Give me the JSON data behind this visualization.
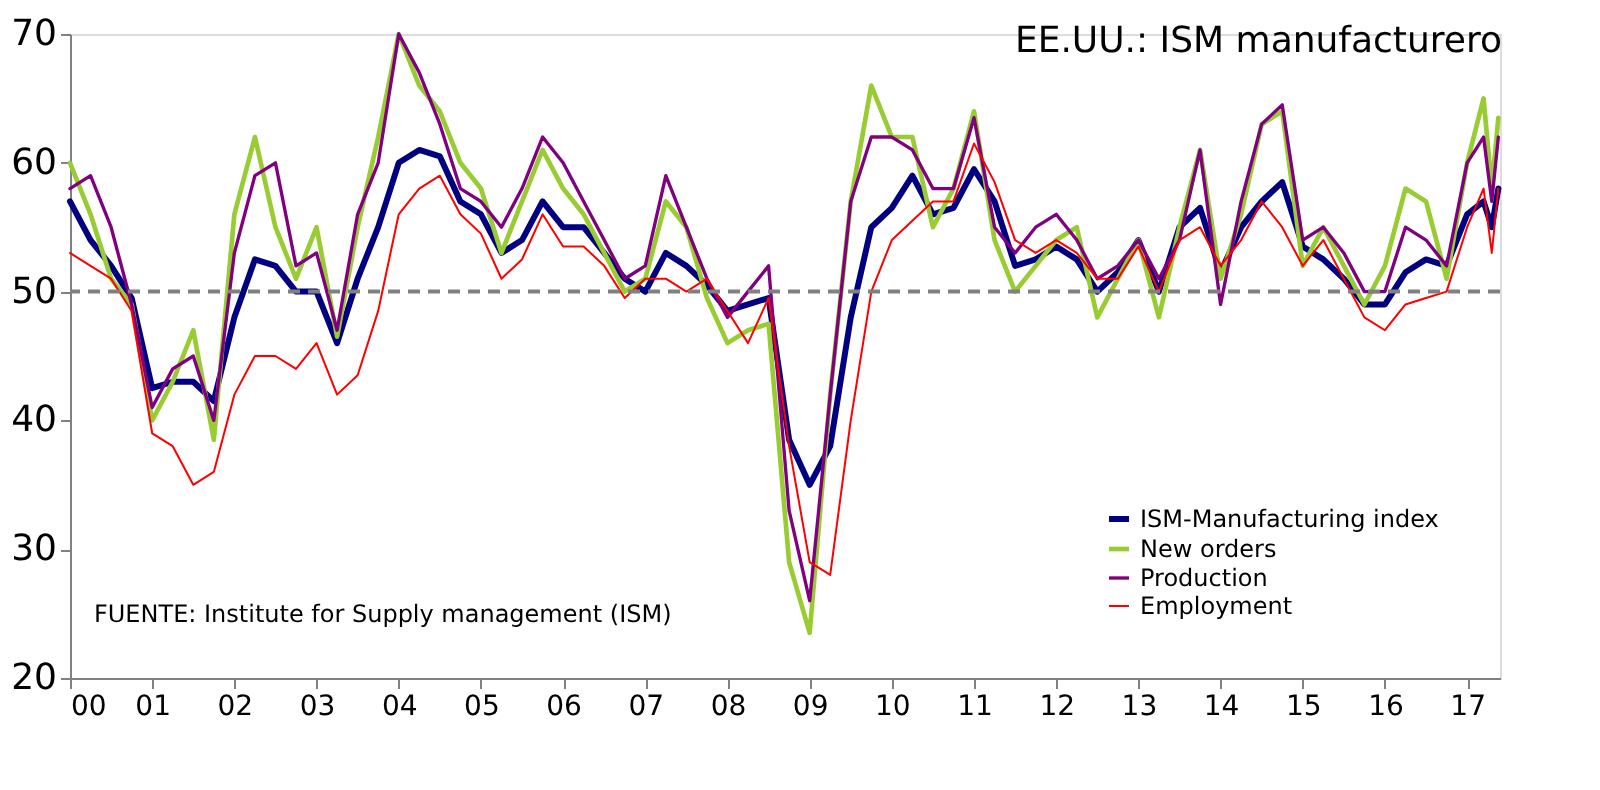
{
  "chart_data": {
    "type": "line",
    "title": "EE.UU.: ISM manufacturero",
    "x": [
      2000,
      2000.25,
      2000.5,
      2000.75,
      2001,
      2001.25,
      2001.5,
      2001.75,
      2002,
      2002.25,
      2002.5,
      2002.75,
      2003,
      2003.25,
      2003.5,
      2003.75,
      2004,
      2004.25,
      2004.5,
      2004.75,
      2005,
      2005.25,
      2005.5,
      2005.75,
      2006,
      2006.25,
      2006.5,
      2006.75,
      2007,
      2007.25,
      2007.5,
      2007.75,
      2008,
      2008.25,
      2008.5,
      2008.75,
      2009,
      2009.25,
      2009.5,
      2009.75,
      2010,
      2010.25,
      2010.5,
      2010.75,
      2011,
      2011.25,
      2011.5,
      2011.75,
      2012,
      2012.25,
      2012.5,
      2012.75,
      2013,
      2013.25,
      2013.5,
      2013.75,
      2014,
      2014.25,
      2014.5,
      2014.75,
      2015,
      2015.25,
      2015.5,
      2015.75,
      2016,
      2016.25,
      2016.5,
      2016.75,
      2017,
      2017.2,
      2017.3,
      2017.38
    ],
    "series": [
      {
        "name": "ISM-Manufacturing index",
        "color": "#000080",
        "values": [
          57,
          54,
          52,
          49.5,
          42.5,
          43,
          43,
          41.5,
          48,
          52.5,
          52,
          50,
          50,
          46,
          51,
          55,
          60,
          61,
          60.5,
          57,
          56,
          53,
          54,
          57,
          55,
          55,
          53,
          51,
          50,
          53,
          52,
          50.5,
          48.5,
          49,
          49.5,
          38.5,
          35,
          38,
          48,
          55,
          56.5,
          59,
          56,
          56.5,
          59.5,
          57,
          52,
          52.5,
          53.5,
          52.5,
          50,
          51.5,
          54,
          50,
          55,
          56.5,
          51.5,
          55,
          57,
          58.5,
          53.5,
          52.5,
          51,
          49,
          49,
          51.5,
          52.5,
          52,
          56,
          57,
          55,
          58
        ]
      },
      {
        "name": "New orders",
        "color": "#99cc33",
        "values": [
          60,
          56,
          51,
          49,
          40,
          43,
          47,
          38.5,
          56,
          62,
          55,
          51,
          55,
          46.5,
          55,
          62,
          70,
          66,
          64,
          60,
          58,
          53,
          57,
          61,
          58,
          56,
          53,
          50,
          51,
          57,
          55,
          49.5,
          46,
          47,
          47.5,
          29,
          23.5,
          42,
          57,
          66,
          62,
          62,
          55,
          58,
          64,
          54,
          50,
          52,
          54,
          55,
          48,
          51,
          54,
          48,
          55,
          61,
          51,
          56,
          63,
          64,
          52,
          55,
          52,
          49,
          52,
          58,
          57,
          51,
          60,
          65,
          58,
          63.5
        ]
      },
      {
        "name": "Production",
        "color": "#800080",
        "values": [
          58,
          59,
          55,
          49,
          41,
          44,
          45,
          40,
          53,
          59,
          60,
          52,
          53,
          47,
          56,
          60,
          70,
          67,
          63,
          58,
          57,
          55,
          58,
          62,
          60,
          57,
          54,
          51,
          52,
          59,
          55,
          51,
          48,
          50,
          52,
          33,
          26,
          42,
          57,
          62,
          62,
          61,
          58,
          58,
          63.5,
          55,
          53,
          55,
          56,
          54,
          51,
          52,
          54,
          51,
          54,
          61,
          49,
          57,
          63,
          64.5,
          54,
          55,
          53,
          50,
          50,
          55,
          54,
          52,
          60,
          62,
          57,
          62
        ]
      },
      {
        "name": "Employment",
        "color": "#ff0000",
        "values": [
          53,
          52,
          51,
          48.5,
          39,
          38,
          35,
          36,
          42,
          45,
          45,
          44,
          46,
          42,
          43.5,
          48.5,
          56,
          58,
          59,
          56,
          54.5,
          51,
          52.5,
          56,
          53.5,
          53.5,
          52,
          49.5,
          51,
          51,
          50,
          51,
          48.5,
          46,
          49.5,
          38,
          29,
          28,
          40,
          50,
          54,
          55.5,
          57,
          57,
          61.5,
          58.5,
          54,
          53,
          54,
          53,
          51,
          51,
          53.5,
          50,
          54,
          55,
          52,
          54,
          57,
          55,
          52,
          54,
          51,
          48,
          47,
          49,
          49.5,
          50,
          55,
          58,
          53,
          58
        ]
      }
    ],
    "xlim": [
      2000,
      2017.4
    ],
    "xticks": [
      {
        "value": 2000,
        "label": "00"
      },
      {
        "value": 2001,
        "label": "01"
      },
      {
        "value": 2002,
        "label": "02"
      },
      {
        "value": 2003,
        "label": "03"
      },
      {
        "value": 2004,
        "label": "04"
      },
      {
        "value": 2005,
        "label": "05"
      },
      {
        "value": 2006,
        "label": "06"
      },
      {
        "value": 2007,
        "label": "07"
      },
      {
        "value": 2008,
        "label": "08"
      },
      {
        "value": 2009,
        "label": "09"
      },
      {
        "value": 2010,
        "label": "10"
      },
      {
        "value": 2011,
        "label": "11"
      },
      {
        "value": 2012,
        "label": "12"
      },
      {
        "value": 2013,
        "label": "13"
      },
      {
        "value": 2014,
        "label": "14"
      },
      {
        "value": 2015,
        "label": "15"
      },
      {
        "value": 2016,
        "label": "16"
      },
      {
        "value": 2017,
        "label": "17"
      }
    ],
    "ylim": [
      20,
      70
    ],
    "yticks": [
      20,
      30,
      40,
      50,
      60,
      70
    ],
    "ref_lines": [
      {
        "axis": "y",
        "value": 50,
        "color": "#808080",
        "line_style": "dashed"
      }
    ],
    "annotations": [
      "FUENTE: Institute for Supply management (ISM)"
    ],
    "legend": "bottom right",
    "grid": false,
    "marker": "none",
    "line_style": "solid"
  }
}
